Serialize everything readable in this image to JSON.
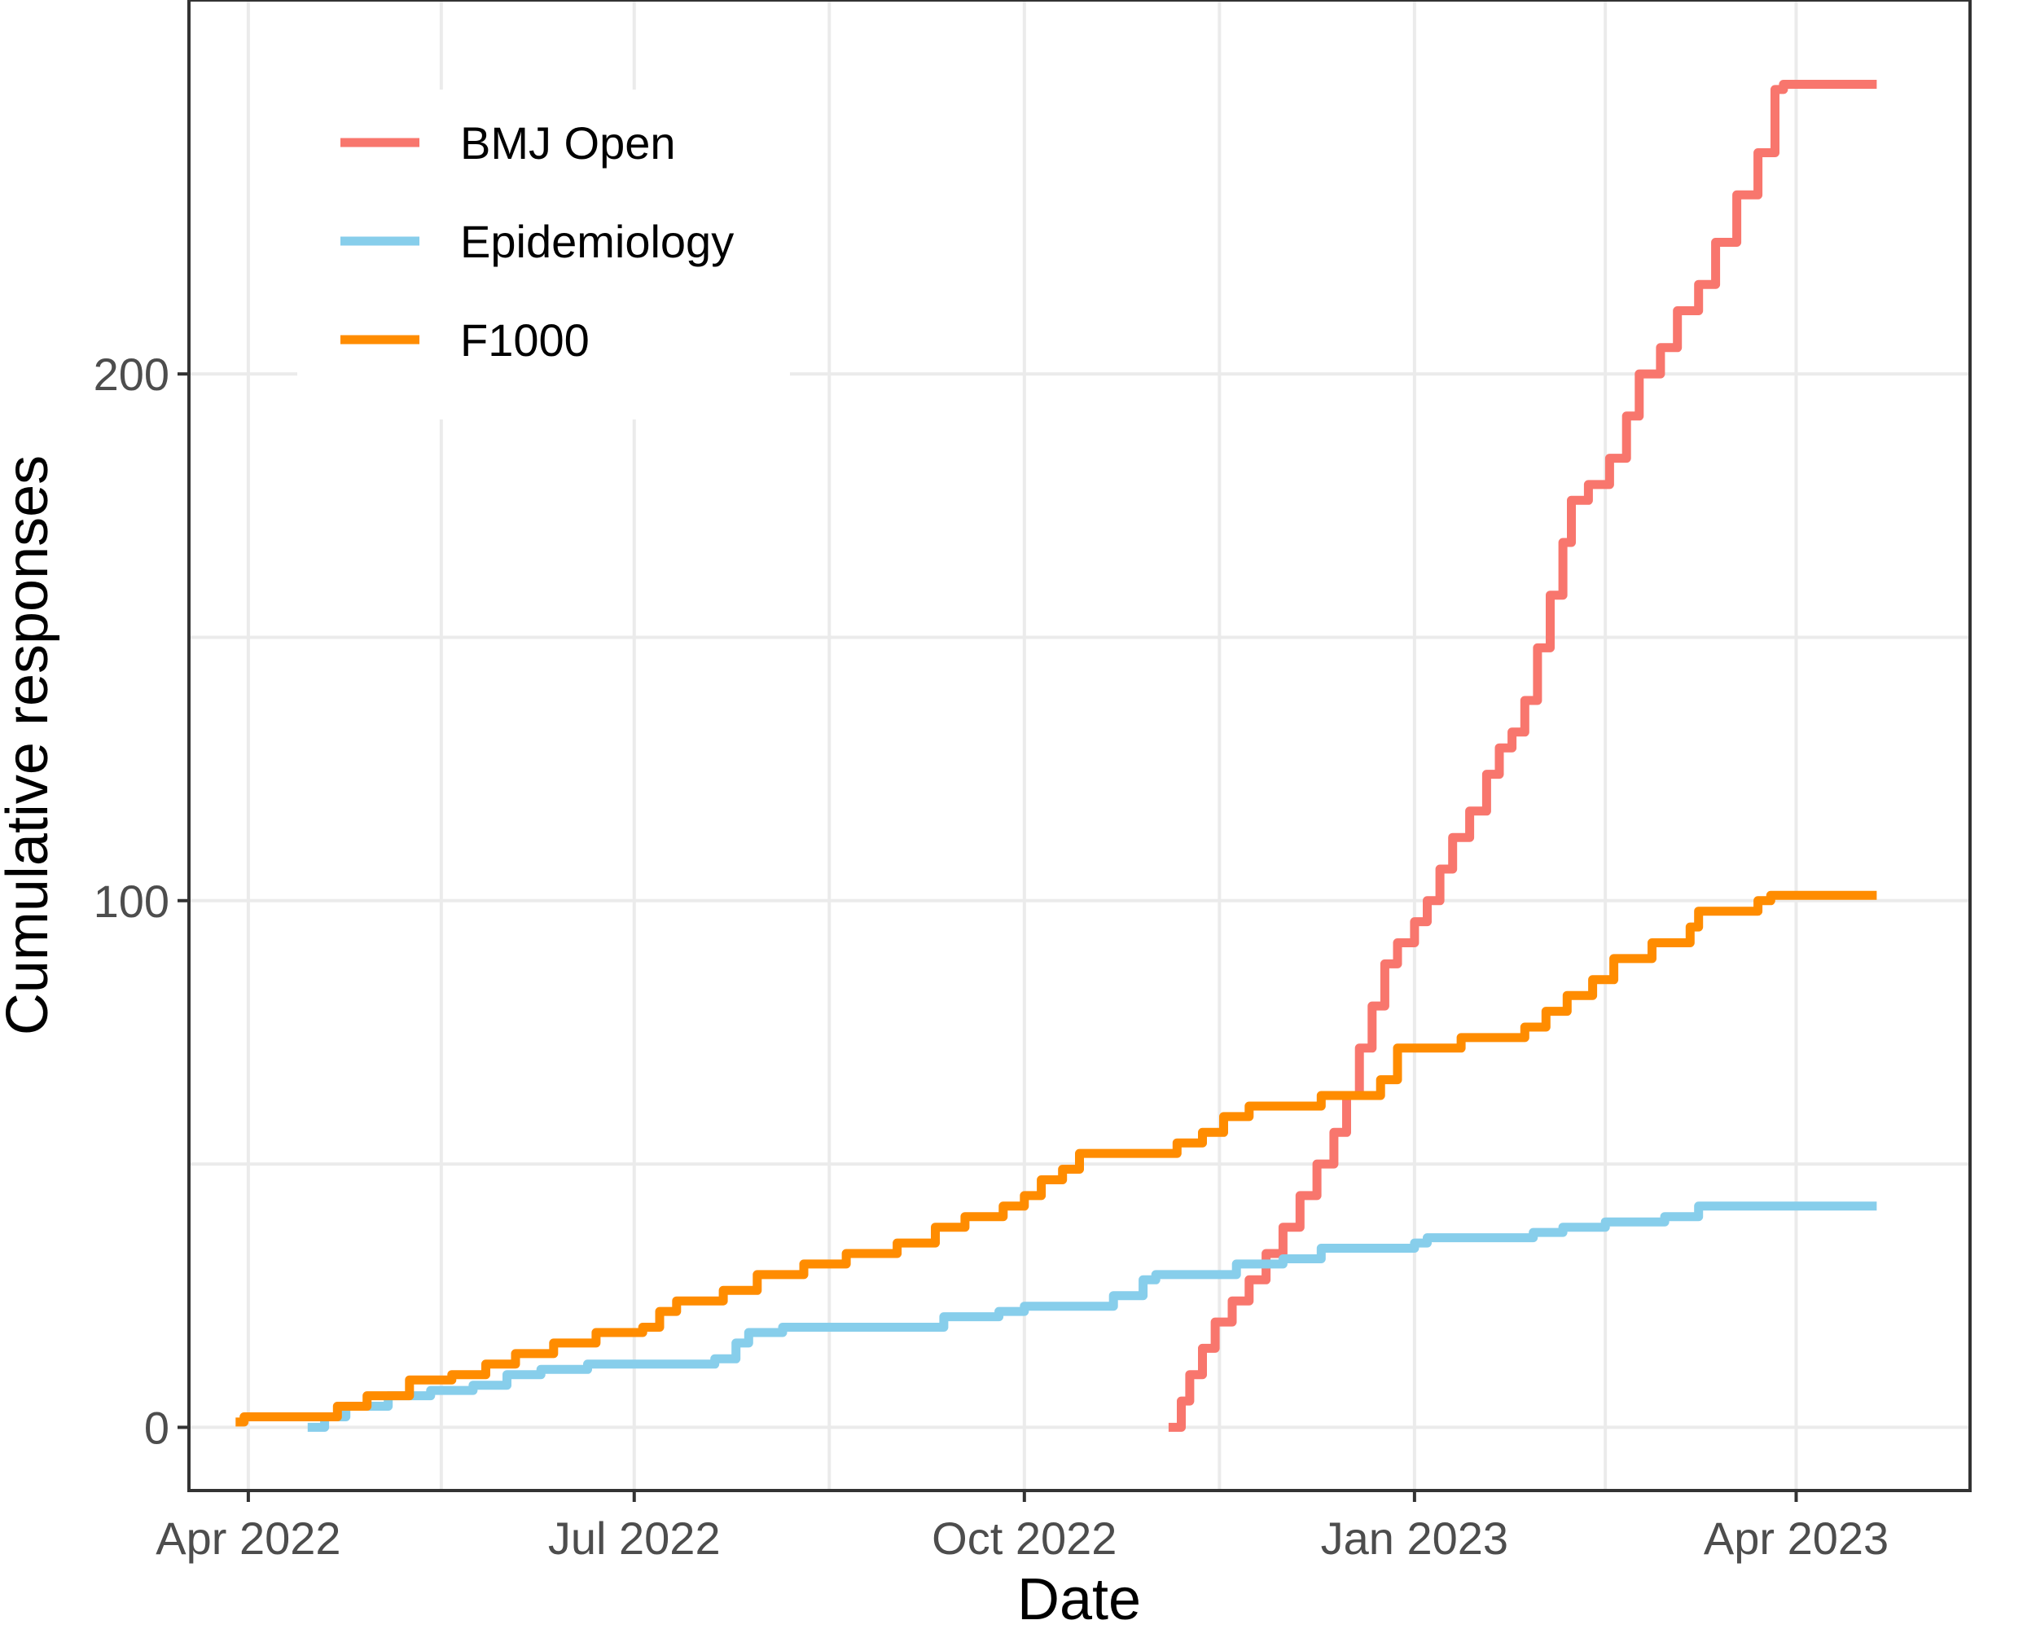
{
  "chart_data": {
    "type": "line",
    "xlabel": "Date",
    "ylabel": "Cumulative responses",
    "x_type": "date",
    "xlim": [
      "2022-03-18",
      "2023-05-12"
    ],
    "ylim": [
      -12,
      271
    ],
    "x_ticks": [
      {
        "value": "2022-04-01",
        "label": "Apr 2022"
      },
      {
        "value": "2022-07-01",
        "label": "Jul 2022"
      },
      {
        "value": "2022-10-01",
        "label": "Oct 2022"
      },
      {
        "value": "2023-01-01",
        "label": "Jan 2023"
      },
      {
        "value": "2023-04-01",
        "label": "Apr 2023"
      }
    ],
    "y_ticks": [
      {
        "value": 0,
        "label": "0"
      },
      {
        "value": 100,
        "label": "100"
      },
      {
        "value": 200,
        "label": "200"
      }
    ],
    "grid": true,
    "legend_position": "top-left",
    "series": [
      {
        "name": "BMJ Open",
        "color": "#F8766D",
        "points": [
          [
            "2022-11-04",
            0
          ],
          [
            "2022-11-07",
            5
          ],
          [
            "2022-11-09",
            10
          ],
          [
            "2022-11-12",
            15
          ],
          [
            "2022-11-15",
            20
          ],
          [
            "2022-11-19",
            24
          ],
          [
            "2022-11-23",
            28
          ],
          [
            "2022-11-27",
            33
          ],
          [
            "2022-12-01",
            38
          ],
          [
            "2022-12-05",
            44
          ],
          [
            "2022-12-09",
            50
          ],
          [
            "2022-12-13",
            56
          ],
          [
            "2022-12-16",
            63
          ],
          [
            "2022-12-19",
            72
          ],
          [
            "2022-12-22",
            80
          ],
          [
            "2022-12-25",
            88
          ],
          [
            "2022-12-28",
            92
          ],
          [
            "2023-01-01",
            96
          ],
          [
            "2023-01-04",
            100
          ],
          [
            "2023-01-07",
            106
          ],
          [
            "2023-01-10",
            112
          ],
          [
            "2023-01-14",
            117
          ],
          [
            "2023-01-18",
            124
          ],
          [
            "2023-01-21",
            129
          ],
          [
            "2023-01-24",
            132
          ],
          [
            "2023-01-27",
            138
          ],
          [
            "2023-01-30",
            148
          ],
          [
            "2023-02-02",
            158
          ],
          [
            "2023-02-05",
            168
          ],
          [
            "2023-02-07",
            176
          ],
          [
            "2023-02-11",
            179
          ],
          [
            "2023-02-16",
            184
          ],
          [
            "2023-02-20",
            192
          ],
          [
            "2023-02-23",
            200
          ],
          [
            "2023-02-28",
            205
          ],
          [
            "2023-03-04",
            212
          ],
          [
            "2023-03-09",
            217
          ],
          [
            "2023-03-13",
            225
          ],
          [
            "2023-03-18",
            234
          ],
          [
            "2023-03-23",
            242
          ],
          [
            "2023-03-27",
            254
          ],
          [
            "2023-03-29",
            255
          ],
          [
            "2023-04-20",
            255
          ]
        ]
      },
      {
        "name": "Epidemiology",
        "color": "#87CEEB",
        "points": [
          [
            "2022-04-15",
            0
          ],
          [
            "2022-04-19",
            2
          ],
          [
            "2022-04-24",
            4
          ],
          [
            "2022-05-04",
            6
          ],
          [
            "2022-05-14",
            7
          ],
          [
            "2022-05-24",
            8
          ],
          [
            "2022-06-01",
            10
          ],
          [
            "2022-06-09",
            11
          ],
          [
            "2022-06-20",
            12
          ],
          [
            "2022-07-05",
            12
          ],
          [
            "2022-07-20",
            13
          ],
          [
            "2022-07-25",
            16
          ],
          [
            "2022-07-28",
            18
          ],
          [
            "2022-08-05",
            19
          ],
          [
            "2022-09-05",
            19
          ],
          [
            "2022-09-12",
            21
          ],
          [
            "2022-09-25",
            22
          ],
          [
            "2022-10-01",
            23
          ],
          [
            "2022-10-18",
            23
          ],
          [
            "2022-10-22",
            25
          ],
          [
            "2022-10-29",
            28
          ],
          [
            "2022-11-01",
            29
          ],
          [
            "2022-11-20",
            31
          ],
          [
            "2022-12-01",
            32
          ],
          [
            "2022-12-10",
            34
          ],
          [
            "2022-12-20",
            34
          ],
          [
            "2023-01-01",
            35
          ],
          [
            "2023-01-04",
            36
          ],
          [
            "2023-01-29",
            37
          ],
          [
            "2023-02-05",
            38
          ],
          [
            "2023-02-15",
            39
          ],
          [
            "2023-03-01",
            40
          ],
          [
            "2023-03-09",
            42
          ],
          [
            "2023-04-20",
            42
          ]
        ]
      },
      {
        "name": "F1000",
        "color": "#FF8C00",
        "points": [
          [
            "2022-03-29",
            1
          ],
          [
            "2022-03-31",
            2
          ],
          [
            "2022-04-17",
            2
          ],
          [
            "2022-04-22",
            4
          ],
          [
            "2022-04-29",
            6
          ],
          [
            "2022-05-09",
            9
          ],
          [
            "2022-05-19",
            10
          ],
          [
            "2022-05-27",
            12
          ],
          [
            "2022-06-03",
            14
          ],
          [
            "2022-06-12",
            16
          ],
          [
            "2022-06-22",
            18
          ],
          [
            "2022-07-03",
            19
          ],
          [
            "2022-07-07",
            22
          ],
          [
            "2022-07-11",
            24
          ],
          [
            "2022-07-22",
            26
          ],
          [
            "2022-07-30",
            29
          ],
          [
            "2022-08-10",
            31
          ],
          [
            "2022-08-20",
            33
          ],
          [
            "2022-09-01",
            35
          ],
          [
            "2022-09-10",
            38
          ],
          [
            "2022-09-17",
            40
          ],
          [
            "2022-09-26",
            42
          ],
          [
            "2022-10-01",
            44
          ],
          [
            "2022-10-05",
            47
          ],
          [
            "2022-10-10",
            49
          ],
          [
            "2022-10-14",
            52
          ],
          [
            "2022-11-01",
            52
          ],
          [
            "2022-11-06",
            54
          ],
          [
            "2022-11-12",
            56
          ],
          [
            "2022-11-17",
            59
          ],
          [
            "2022-11-23",
            61
          ],
          [
            "2022-12-05",
            61
          ],
          [
            "2022-12-10",
            63
          ],
          [
            "2022-12-20",
            63
          ],
          [
            "2022-12-24",
            66
          ],
          [
            "2022-12-28",
            72
          ],
          [
            "2023-01-09",
            72
          ],
          [
            "2023-01-12",
            74
          ],
          [
            "2023-01-23",
            74
          ],
          [
            "2023-01-27",
            76
          ],
          [
            "2023-02-01",
            79
          ],
          [
            "2023-02-06",
            82
          ],
          [
            "2023-02-12",
            85
          ],
          [
            "2023-02-17",
            89
          ],
          [
            "2023-02-26",
            92
          ],
          [
            "2023-03-07",
            95
          ],
          [
            "2023-03-09",
            98
          ],
          [
            "2023-03-20",
            98
          ],
          [
            "2023-03-23",
            100
          ],
          [
            "2023-03-26",
            101
          ],
          [
            "2023-04-20",
            101
          ]
        ]
      }
    ]
  }
}
